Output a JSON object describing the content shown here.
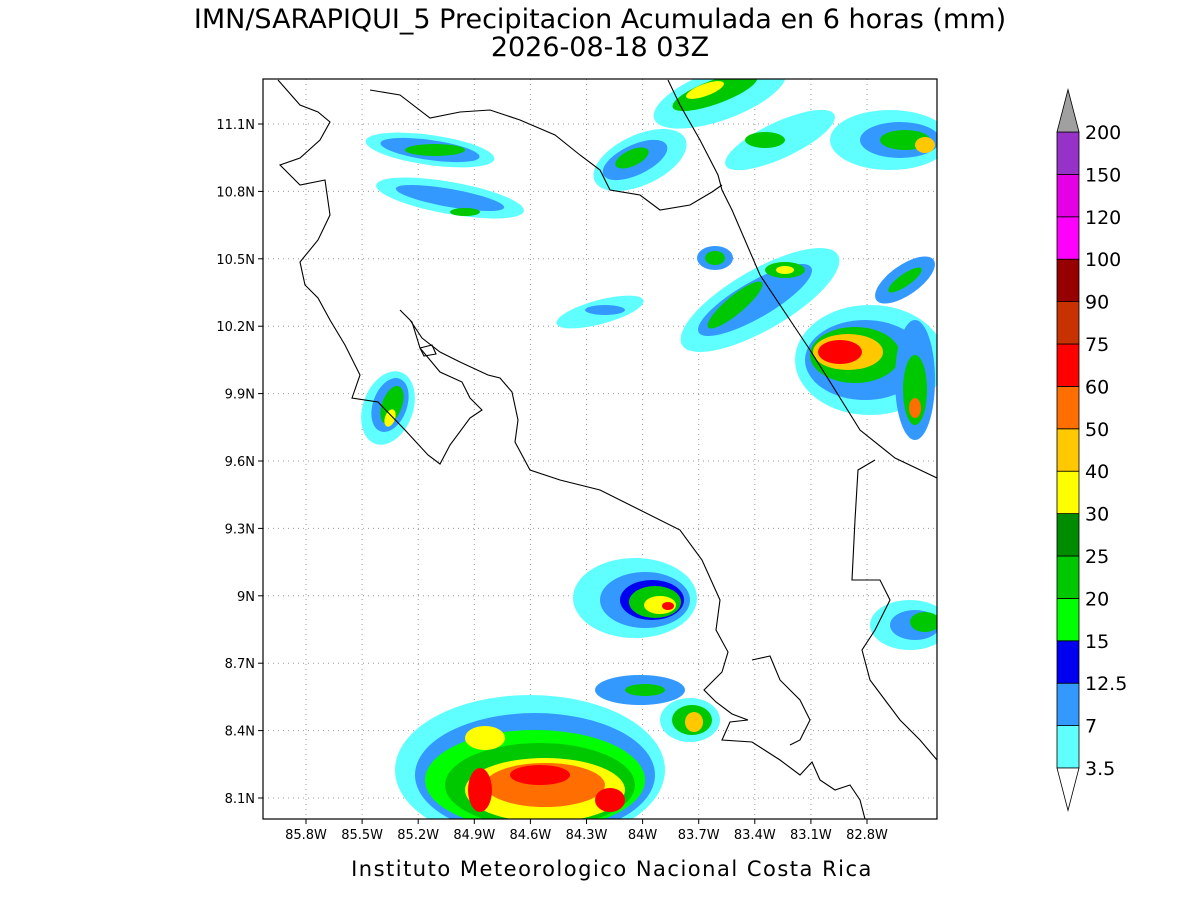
{
  "map": {
    "title": "IMN/SARAPIQUI_5 Precipitacion Acumulada en 6 horas (mm)",
    "subtitle": "2026-08-18 03Z",
    "lon_ticks": [
      "85.8W",
      "85.5W",
      "85.2W",
      "84.9W",
      "84.6W",
      "84.3W",
      "84W",
      "83.7W",
      "83.4W",
      "83.1W",
      "82.8W"
    ],
    "lat_ticks": [
      "8.1N",
      "8.4N",
      "8.7N",
      "9N",
      "9.3N",
      "9.6N",
      "9.9N",
      "10.2N",
      "10.5N",
      "10.8N",
      "11.1N"
    ],
    "colorbar": {
      "levels": [
        3.5,
        7,
        12.5,
        15,
        20,
        25,
        30,
        40,
        50,
        60,
        75,
        90,
        100,
        120,
        150,
        200
      ],
      "colors": [
        "#5fffff",
        "#3399ff",
        "#0000f0",
        "#00ff00",
        "#00c800",
        "#008c00",
        "#ffff00",
        "#ffc800",
        "#ff6e00",
        "#ff0000",
        "#c83200",
        "#960000",
        "#ff00ff",
        "#e600e6",
        "#9632c8",
        "#f2f2f2"
      ],
      "below_color": "#ffffff",
      "above_color": "#a0a0a0"
    },
    "footer": "Instituto Meteorologico Nacional Costa Rica"
  }
}
